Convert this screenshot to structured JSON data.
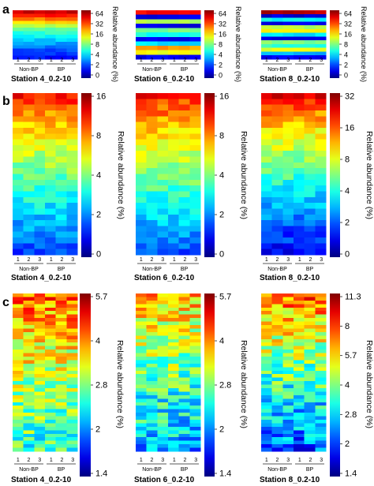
{
  "chart_data": [
    {
      "panel": "a",
      "type": "heatmap",
      "colorbar_label": "Relative abundance (%)",
      "colorbar_ticks": [
        "64",
        "32",
        "16",
        "8",
        "4",
        "2",
        "0"
      ],
      "colorbar_scale": "log2",
      "colormap": "jet",
      "heatmaps": [
        {
          "title": "Station 4_0.2-10",
          "group_labels": [
            "Non-BP",
            "BP"
          ],
          "column_labels": [
            "1",
            "2",
            "3",
            "1",
            "2",
            "3"
          ],
          "row_levels": [
            0.92,
            0.85,
            0.76,
            0.66,
            0.56,
            0.48,
            0.42,
            0.38,
            0.33,
            0.28,
            0.24,
            0.2,
            0.17,
            0.14
          ]
        },
        {
          "title": "Station 6_0.2-10",
          "group_labels": [
            "Non-BP",
            "BP"
          ],
          "column_labels": [
            "1",
            "2",
            "3",
            "1",
            "2",
            "3"
          ],
          "row_levels": [
            0.88,
            0.1,
            0.55,
            0.1,
            0.48,
            0.4,
            0.12,
            0.35,
            0.72,
            0.62,
            0.12
          ]
        },
        {
          "title": "Station 8_0.2-10",
          "group_labels": [
            "Non-BP",
            "BP"
          ],
          "column_labels": [
            "1",
            "2",
            "3",
            "1",
            "2",
            "3"
          ],
          "row_levels": [
            0.95,
            0.08,
            0.38,
            0.1,
            0.55,
            0.62,
            0.35,
            0.1,
            0.5,
            0.42,
            0.6,
            0.3,
            0.12
          ]
        }
      ]
    },
    {
      "panel": "b",
      "type": "heatmap",
      "colorbar_label": "Relative abundance (%)",
      "heatmaps": [
        {
          "title": "Station 4_0.2-10",
          "group_labels": [
            "Non-BP",
            "BP"
          ],
          "column_labels": [
            "1",
            "2",
            "3",
            "1",
            "2",
            "3"
          ],
          "colorbar_ticks": [
            "16",
            "8",
            "4",
            "2",
            "0"
          ],
          "colorbar_scale": "log2",
          "colormap": "jet",
          "rows": 28,
          "top_level": 0.86,
          "bottom_level": 0.2,
          "seed": 11
        },
        {
          "title": "Station 6_0.2-10",
          "group_labels": [
            "Non-BP",
            "BP"
          ],
          "column_labels": [
            "1",
            "2",
            "3",
            "1",
            "2",
            "3"
          ],
          "colorbar_ticks": [
            "16",
            "8",
            "4",
            "2",
            "0"
          ],
          "colorbar_scale": "log2",
          "colormap": "jet",
          "rows": 28,
          "top_level": 0.86,
          "bottom_level": 0.22,
          "seed": 23
        },
        {
          "title": "Station 8_0.2-10",
          "group_labels": [
            "Non-BP",
            "BP"
          ],
          "column_labels": [
            "1",
            "2",
            "3",
            "1",
            "2",
            "3"
          ],
          "colorbar_ticks": [
            "32",
            "16",
            "8",
            "4",
            "2",
            "0"
          ],
          "colorbar_scale": "log2",
          "colormap": "jet",
          "rows": 28,
          "top_level": 0.88,
          "bottom_level": 0.12,
          "seed": 37
        }
      ]
    },
    {
      "panel": "c",
      "type": "heatmap",
      "colorbar_label": "Relative abundance (%)",
      "heatmaps": [
        {
          "title": "Station 4_0.2-10",
          "group_labels": [
            "Non-BP",
            "BP"
          ],
          "column_labels": [
            "1",
            "2",
            "3",
            "1",
            "2",
            "3"
          ],
          "colorbar_ticks": [
            "5.7",
            "4",
            "2.8",
            "2",
            "1.4"
          ],
          "colorbar_scale": "log2",
          "colormap": "jet",
          "rows": 45,
          "top_level": 0.78,
          "bottom_level": 0.42,
          "seed": 51
        },
        {
          "title": "Station 6_0.2-10",
          "group_labels": [
            "Non-BP",
            "BP"
          ],
          "column_labels": [
            "1",
            "2",
            "3",
            "1",
            "2",
            "3"
          ],
          "colorbar_ticks": [
            "5.7",
            "4",
            "2.8",
            "2",
            "1.4"
          ],
          "colorbar_scale": "log2",
          "colormap": "jet",
          "rows": 45,
          "top_level": 0.72,
          "bottom_level": 0.3,
          "seed": 67
        },
        {
          "title": "Station 8_0.2-10",
          "group_labels": [
            "Non-BP",
            "BP"
          ],
          "column_labels": [
            "1",
            "2",
            "3",
            "1",
            "2",
            "3"
          ],
          "colorbar_ticks": [
            "11.3",
            "8",
            "5.7",
            "4",
            "2.8",
            "2",
            "1.4"
          ],
          "colorbar_scale": "log2",
          "colormap": "jet",
          "rows": 45,
          "top_level": 0.8,
          "bottom_level": 0.22,
          "seed": 83
        }
      ]
    }
  ],
  "panel_letters": [
    "a",
    "b",
    "c"
  ]
}
